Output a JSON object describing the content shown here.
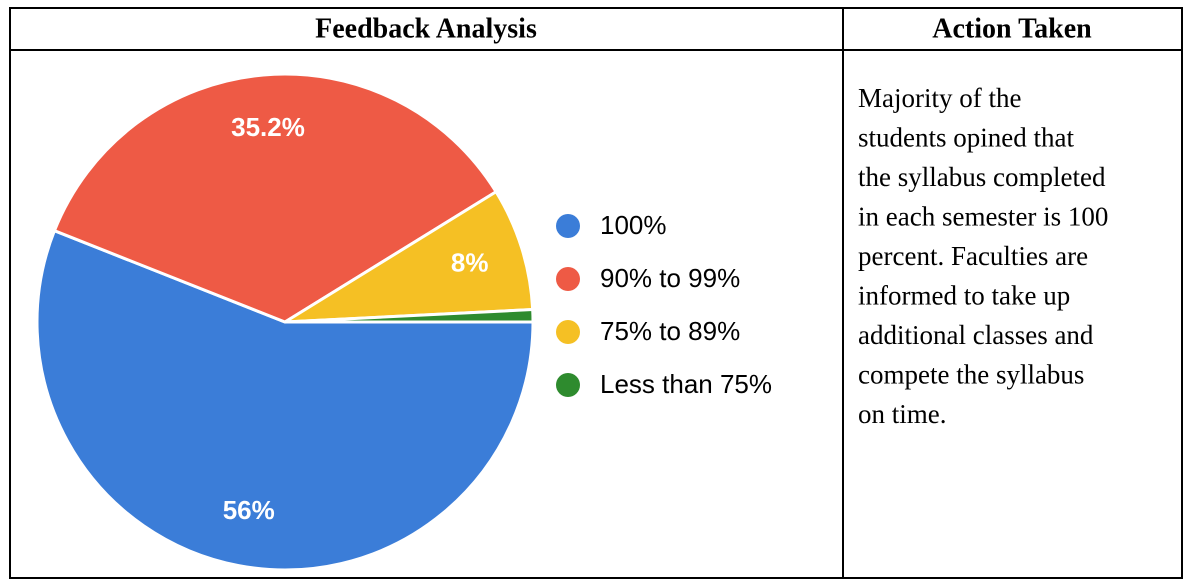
{
  "table": {
    "headers": [
      "Feedback Analysis",
      "Action Taken"
    ],
    "action_lines": [
      "Majority of the",
      "students opined that",
      "the syllabus completed",
      "in each semester is 100",
      "percent. Faculties are",
      "informed to take up",
      "additional classes and",
      "compete the syllabus",
      "on time."
    ]
  },
  "chart_data": {
    "type": "pie",
    "categories": [
      "100%",
      "90% to 99%",
      "75% to 89%",
      "Less than 75%"
    ],
    "values": [
      56,
      35.2,
      8,
      0.8
    ],
    "value_labels": [
      "56%",
      "35.2%",
      "8%",
      null
    ],
    "colors": [
      "#3b7dd8",
      "#ee5a45",
      "#f5c024",
      "#2e8b2e"
    ]
  }
}
